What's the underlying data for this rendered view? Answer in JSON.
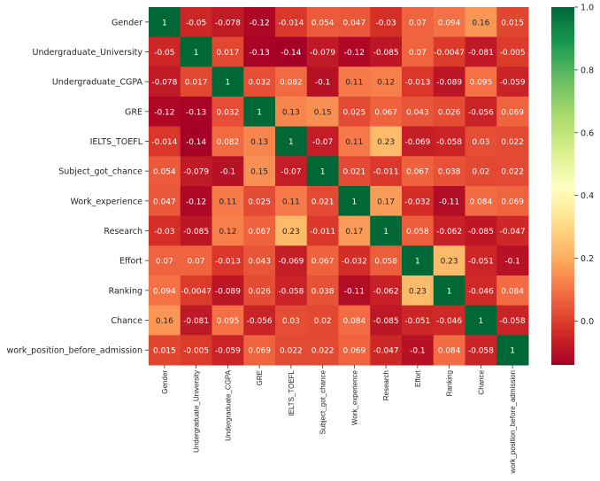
{
  "chart_data": {
    "type": "heatmap",
    "title": "",
    "labels": [
      "Gender",
      "Undergraduate_University",
      "Undergraduate_CGPA",
      "GRE",
      "IELTS_TOEFL",
      "Subject_got_chance",
      "Work_experience",
      "Research",
      "Effort",
      "Ranking",
      "Chance",
      "work_position_before_admission"
    ],
    "values": [
      [
        "1",
        "-0.05",
        "-0.078",
        "-0.12",
        "-0.014",
        "0.054",
        "0.047",
        "-0.03",
        "0.07",
        "0.094",
        "0.16",
        "0.015"
      ],
      [
        "-0.05",
        "1",
        "0.017",
        "-0.13",
        "-0.14",
        "-0.079",
        "-0.12",
        "-0.085",
        "0.07",
        "-0.0047",
        "-0.081",
        "-0.005"
      ],
      [
        "-0.078",
        "0.017",
        "1",
        "0.032",
        "0.082",
        "-0.1",
        "0.11",
        "0.12",
        "-0.013",
        "-0.089",
        "0.095",
        "-0.059"
      ],
      [
        "-0.12",
        "-0.13",
        "0.032",
        "1",
        "0.13",
        "0.15",
        "0.025",
        "0.067",
        "0.043",
        "0.026",
        "-0.056",
        "0.069"
      ],
      [
        "-0.014",
        "-0.14",
        "0.082",
        "0.13",
        "1",
        "-0.07",
        "0.11",
        "0.23",
        "-0.069",
        "-0.058",
        "0.03",
        "0.022"
      ],
      [
        "0.054",
        "-0.079",
        "-0.1",
        "0.15",
        "-0.07",
        "1",
        "0.021",
        "-0.011",
        "0.067",
        "0.038",
        "0.02",
        "0.022"
      ],
      [
        "0.047",
        "-0.12",
        "0.11",
        "0.025",
        "0.11",
        "0.021",
        "1",
        "0.17",
        "-0.032",
        "-0.11",
        "0.084",
        "0.069"
      ],
      [
        "-0.03",
        "-0.085",
        "0.12",
        "0.067",
        "0.23",
        "-0.011",
        "0.17",
        "1",
        "0.058",
        "-0.062",
        "-0.085",
        "-0.047"
      ],
      [
        "0.07",
        "0.07",
        "-0.013",
        "0.043",
        "-0.069",
        "0.067",
        "-0.032",
        "0.058",
        "1",
        "0.23",
        "-0.051",
        "-0.1"
      ],
      [
        "0.094",
        "-0.0047",
        "-0.089",
        "0.026",
        "-0.058",
        "0.038",
        "-0.11",
        "-0.062",
        "0.23",
        "1",
        "-0.046",
        "0.084"
      ],
      [
        "0.16",
        "-0.081",
        "0.095",
        "-0.056",
        "0.03",
        "0.02",
        "0.084",
        "-0.085",
        "-0.051",
        "-0.046",
        "1",
        "-0.058"
      ],
      [
        "0.015",
        "-0.005",
        "-0.059",
        "0.069",
        "0.022",
        "0.022",
        "0.069",
        "-0.047",
        "-0.1",
        "0.084",
        "-0.058",
        "1"
      ]
    ],
    "colormap": "RdYlGn",
    "vmin": -0.14,
    "vmax": 1.0,
    "colorbar_ticks": [
      "0.0",
      "0.2",
      "0.4",
      "0.6",
      "0.8",
      "1.0"
    ],
    "legend_placement": "right"
  }
}
